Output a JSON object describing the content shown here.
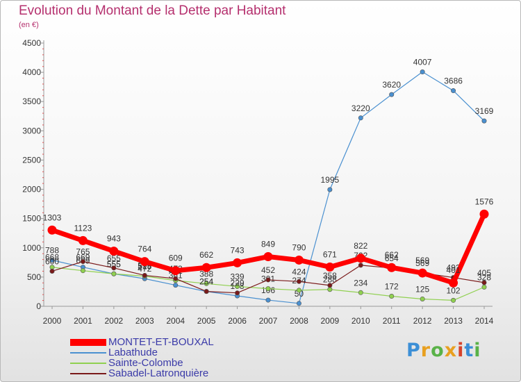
{
  "title": "Evolution du Montant de la Dette par Habitant",
  "unit": "(en €)",
  "logo": {
    "text": "Proxiti",
    "colors": [
      "#3c8fd6",
      "#e8a020",
      "#59b248",
      "#e8a020",
      "#d6432b",
      "#3c8fd6",
      "#59b248"
    ]
  },
  "chart_data": {
    "type": "line",
    "title": "Evolution du Montant de la Dette par Habitant",
    "ylabel": "(en €)",
    "xlabel": "",
    "ylim": [
      0,
      4500
    ],
    "yticks": [
      0,
      500,
      1000,
      1500,
      2000,
      2500,
      3000,
      3500,
      4000,
      4500
    ],
    "grid": false,
    "legend": "bottom-left",
    "x": [
      "2000",
      "2001",
      "2002",
      "2003",
      "2004",
      "2005",
      "2006",
      "2007",
      "2008",
      "2009",
      "2010",
      "2011",
      "2012",
      "2013",
      "2014"
    ],
    "series": [
      {
        "name": "MONTET-ET-BOUXAL",
        "color": "#ff0000",
        "values": [
          1303,
          1123,
          943,
          764,
          609,
          662,
          743,
          849,
          790,
          671,
          822,
          662,
          569,
          401,
          1576
        ]
      },
      {
        "name": "Labathude",
        "color": "#4a90d0",
        "values": [
          788,
          669,
          555,
          472,
          361,
          254,
          178,
          106,
          50,
          1995,
          3220,
          3620,
          4007,
          3686,
          3169
        ]
      },
      {
        "name": "Sainte-Colombe",
        "color": "#90d050",
        "values": [
          668,
          609,
          555,
          515,
          441,
          388,
          339,
          301,
          274,
          288,
          234,
          172,
          125,
          102,
          328
        ]
      },
      {
        "name": "Sabadel-Latronquière",
        "color": "#7a1a1a",
        "values": [
          600,
          765,
          655,
          529,
          473,
          254,
          229,
          452,
          424,
          358,
          702,
          654,
          569,
          492,
          405
        ]
      }
    ]
  }
}
